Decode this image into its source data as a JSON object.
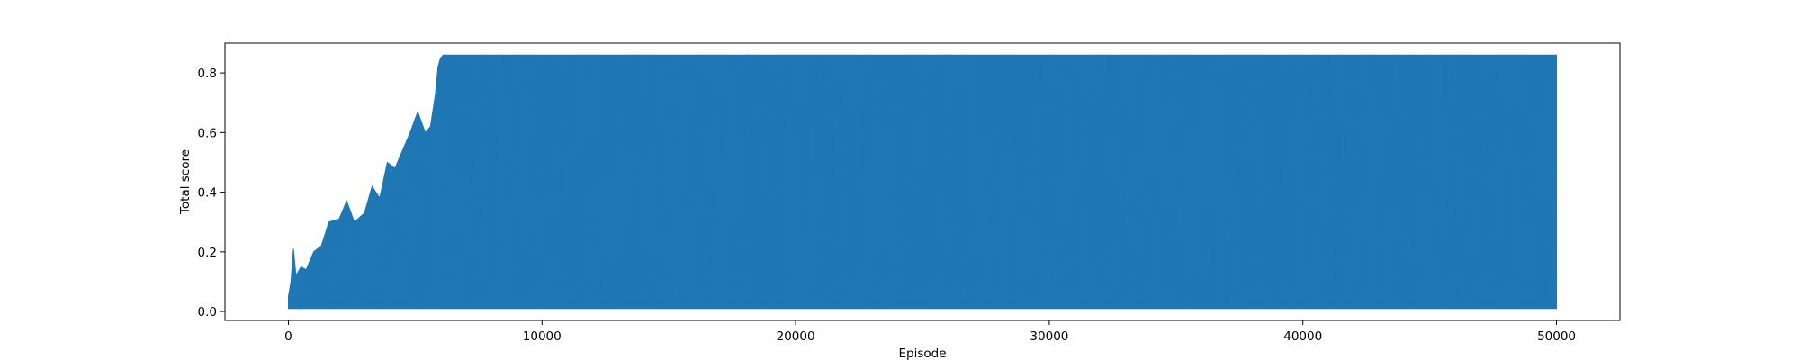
{
  "chart_data": {
    "type": "line",
    "title": "",
    "xlabel": "Episode",
    "ylabel": "Total score",
    "xlim": [
      -2500,
      52500
    ],
    "ylim": [
      -0.03,
      0.9
    ],
    "x_ticks": [
      0,
      10000,
      20000,
      30000,
      40000,
      50000
    ],
    "x_tick_labels": [
      "0",
      "10000",
      "20000",
      "30000",
      "40000",
      "50000"
    ],
    "y_ticks": [
      0.0,
      0.2,
      0.4,
      0.6,
      0.8
    ],
    "y_tick_labels": [
      "0.0",
      "0.2",
      "0.4",
      "0.6",
      "0.8"
    ],
    "grid": false,
    "legend": "none",
    "series": [
      {
        "color": "#1f77b4",
        "episodes": [
          0,
          50000
        ],
        "envelope": {
          "x": [
            0,
            100,
            200,
            300,
            500,
            700,
            1000,
            1300,
            1600,
            2000,
            2300,
            2600,
            3000,
            3300,
            3600,
            3900,
            4200,
            4500,
            4800,
            5100,
            5400,
            5600,
            5800,
            5900,
            6000,
            6100,
            6300,
            7000,
            10000,
            15000,
            20000,
            25000,
            30000,
            35000,
            40000,
            45000,
            50000
          ],
          "upper": [
            0.05,
            0.1,
            0.21,
            0.12,
            0.15,
            0.14,
            0.2,
            0.22,
            0.3,
            0.31,
            0.37,
            0.3,
            0.33,
            0.42,
            0.38,
            0.5,
            0.48,
            0.54,
            0.6,
            0.67,
            0.6,
            0.62,
            0.73,
            0.82,
            0.85,
            0.86,
            0.86,
            0.86,
            0.86,
            0.86,
            0.86,
            0.86,
            0.86,
            0.86,
            0.86,
            0.86,
            0.86
          ],
          "lower": [
            0.01,
            0.01,
            0.01,
            0.01,
            0.01,
            0.01,
            0.01,
            0.01,
            0.01,
            0.01,
            0.01,
            0.01,
            0.01,
            0.01,
            0.01,
            0.01,
            0.01,
            0.01,
            0.01,
            0.01,
            0.01,
            0.01,
            0.01,
            0.01,
            0.01,
            0.01,
            0.01,
            0.01,
            0.01,
            0.01,
            0.01,
            0.01,
            0.01,
            0.01,
            0.01,
            0.01,
            0.01
          ]
        }
      }
    ]
  }
}
